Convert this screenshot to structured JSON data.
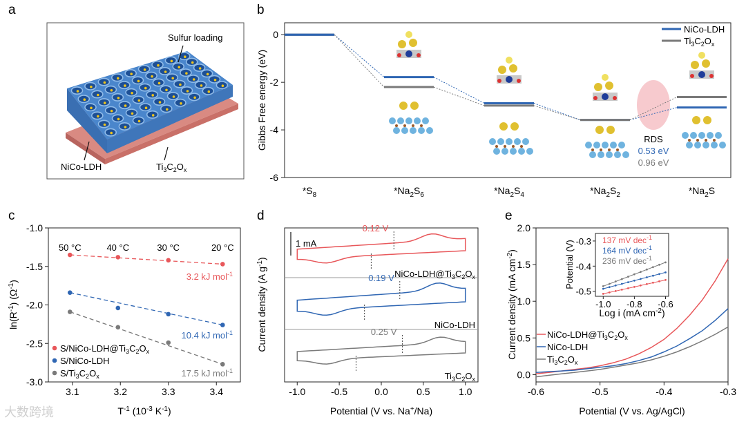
{
  "panels": {
    "a": "a",
    "b": "b",
    "c": "c",
    "d": "d",
    "e": "e"
  },
  "watermark": "大数跨境",
  "panel_a": {
    "labels": {
      "sulfur": "Sulfur loading",
      "ldh": "NiCo-LDH",
      "mxene_base": "Ti",
      "mxene_sub1": "3",
      "mxene_mid": "C",
      "mxene_sub2": "2",
      "mxene_o": "O",
      "mxene_x": "x"
    }
  },
  "colors": {
    "ldh": "#2f66b3",
    "mxene": "#7a7a7a",
    "composite": "#e8575a",
    "rds": "#f4b8bd"
  },
  "chart_data": [
    {
      "panel": "b",
      "type": "line",
      "ylabel": "Gibbs Free energy (eV)",
      "ylim": [
        -6,
        0.5
      ],
      "yticks": [
        0,
        -2,
        -4,
        -6
      ],
      "ytick_labels": [
        "0",
        "-2",
        "-4",
        "-6"
      ],
      "categories": [
        "*S8",
        "*Na2S6",
        "*Na2S4",
        "*Na2S2",
        "*Na2S"
      ],
      "category_parts": [
        {
          "base": "*S",
          "sub": "8",
          "rest": "",
          "sub2": ""
        },
        {
          "base": "*Na",
          "sub": "2",
          "rest": "S",
          "sub2": "6"
        },
        {
          "base": "*Na",
          "sub": "2",
          "rest": "S",
          "sub2": "4"
        },
        {
          "base": "*Na",
          "sub": "2",
          "rest": "S",
          "sub2": "2"
        },
        {
          "base": "*Na",
          "sub": "2",
          "rest": "S",
          "sub2": ""
        }
      ],
      "legend": [
        {
          "name": "NiCo-LDH",
          "base": "NiCo-LDH",
          "sub": ""
        },
        {
          "name": "Ti3C2Ox",
          "base": "Ti",
          "sub": "3",
          "mid": "C",
          "sub2": "2",
          "o": "O",
          "x": "x"
        }
      ],
      "series": [
        {
          "name": "NiCo-LDH",
          "values": [
            0,
            -1.78,
            -2.88,
            -3.58,
            -3.06
          ]
        },
        {
          "name": "Ti3C2Ox",
          "values": [
            0,
            -2.2,
            -2.98,
            -3.58,
            -2.62
          ]
        }
      ],
      "annotations": {
        "rds": "RDS",
        "ldh_rds": "0.53 eV",
        "mxene_rds": "0.96 eV"
      }
    },
    {
      "panel": "c",
      "type": "scatter",
      "xlabel_base": "T",
      "xlabel_sup": "-1",
      "xlabel_rest": " (10",
      "xlabel_sup2": "-3",
      "xlabel_rest2": " K",
      "xlabel_sup3": "-1",
      "xlabel_end": ")",
      "ylabel_base": "ln(R",
      "ylabel_sup": "-1",
      "ylabel_rest": ") (Ω",
      "ylabel_sup2": "-1",
      "ylabel_end": ")",
      "xlim": [
        3.05,
        3.45
      ],
      "ylim": [
        -3.0,
        -1.0
      ],
      "xticks": [
        3.1,
        3.2,
        3.3,
        3.4
      ],
      "xtick_labels": [
        "3.1",
        "3.2",
        "3.3",
        "3.4"
      ],
      "yticks": [
        -1.0,
        -1.5,
        -2.0,
        -2.5,
        -3.0
      ],
      "ytick_labels": [
        "-1.0",
        "-1.5",
        "-2.0",
        "-2.5",
        "-3.0"
      ],
      "x": [
        3.095,
        3.195,
        3.3,
        3.413
      ],
      "temperature_labels": [
        "50 °C",
        "40 °C",
        "30 °C",
        "20 °C"
      ],
      "series": [
        {
          "name": "S/NiCo-LDH@Ti3C2Ox",
          "values": [
            -1.35,
            -1.38,
            -1.42,
            -1.47
          ],
          "activation": "3.2 kJ mol",
          "act_sup": "-1"
        },
        {
          "name": "S/NiCo-LDH",
          "values": [
            -1.84,
            -2.04,
            -2.12,
            -2.26
          ],
          "activation": "10.4 kJ mol",
          "act_sup": "-1"
        },
        {
          "name": "S/Ti3C2Ox",
          "values": [
            -2.09,
            -2.29,
            -2.49,
            -2.77
          ],
          "activation": "17.5 kJ mol",
          "act_sup": "-1"
        }
      ],
      "legend": [
        {
          "base": "S/NiCo-LDH@Ti",
          "sub": "3",
          "mid": "C",
          "sub2": "2",
          "o": "O",
          "x": "x"
        },
        {
          "base": "S/NiCo-LDH",
          "sub": "",
          "mid": "",
          "sub2": "",
          "o": "",
          "x": ""
        },
        {
          "base": "S/Ti",
          "sub": "3",
          "mid": "C",
          "sub2": "2",
          "o": "O",
          "x": "x"
        }
      ]
    },
    {
      "panel": "d",
      "type": "line",
      "xlabel_base": "Potential (V vs. Na",
      "xlabel_sup": "+",
      "xlabel_end": "/Na)",
      "ylabel_base": "Current density (A g",
      "ylabel_sup": "-1",
      "ylabel_end": ")",
      "xlim": [
        -1.15,
        1.15
      ],
      "xticks": [
        -1.0,
        -0.5,
        0.0,
        0.5,
        1.0
      ],
      "xtick_labels": [
        "-1.0",
        "-0.5",
        "0.0",
        "0.5",
        "1.0"
      ],
      "scale_bar": "1 mA",
      "curves": [
        {
          "name": "NiCo-LDH@Ti3C2Ox",
          "label": {
            "base": "NiCo-LDH@Ti",
            "sub": "3",
            "mid": "C",
            "sub2": "2",
            "o": "O",
            "x": "x"
          },
          "gap": "0.12 V",
          "anodic_peak": 0.15,
          "cathodic_peak": -0.12
        },
        {
          "name": "NiCo-LDH",
          "label": {
            "base": "NiCo-LDH",
            "sub": "",
            "mid": "",
            "sub2": "",
            "o": "",
            "x": ""
          },
          "gap": "0.19 V",
          "anodic_peak": 0.22,
          "cathodic_peak": -0.2
        },
        {
          "name": "Ti3C2Ox",
          "label": {
            "base": "Ti",
            "sub": "3",
            "mid": "C",
            "sub2": "2",
            "o": "O",
            "x": "x"
          },
          "gap": "0.25 V",
          "anodic_peak": 0.25,
          "cathodic_peak": -0.3
        }
      ]
    },
    {
      "panel": "e",
      "type": "line",
      "xlabel": "Potential (V vs. Ag/AgCl)",
      "ylabel_base": "Current density (mA cm",
      "ylabel_sup": "-2",
      "ylabel_end": ")",
      "xlim": [
        -0.6,
        -0.3
      ],
      "ylim": [
        -0.1,
        2.0
      ],
      "xticks": [
        -0.6,
        -0.5,
        -0.4,
        -0.3
      ],
      "xtick_labels": [
        "-0.6",
        "-0.5",
        "-0.4",
        "-0.3"
      ],
      "yticks": [
        0.0,
        0.5,
        1.0,
        1.5,
        2.0
      ],
      "ytick_labels": [
        "0.0",
        "0.5",
        "1.0",
        "1.5",
        "2.0"
      ],
      "x": [
        -0.6,
        -0.58,
        -0.56,
        -0.54,
        -0.52,
        -0.5,
        -0.48,
        -0.46,
        -0.44,
        -0.42,
        -0.4,
        -0.38,
        -0.36,
        -0.34,
        -0.32,
        -0.3
      ],
      "series": [
        {
          "name": "NiCo-LDH@Ti3C2Ox",
          "values": [
            0.01,
            0.03,
            0.05,
            0.07,
            0.09,
            0.12,
            0.16,
            0.21,
            0.28,
            0.37,
            0.48,
            0.63,
            0.81,
            1.02,
            1.28,
            1.58
          ]
        },
        {
          "name": "NiCo-LDH",
          "values": [
            0.03,
            0.04,
            0.05,
            0.06,
            0.08,
            0.1,
            0.12,
            0.15,
            0.19,
            0.24,
            0.31,
            0.39,
            0.49,
            0.6,
            0.74,
            0.9
          ]
        },
        {
          "name": "Ti3C2Ox",
          "values": [
            -0.03,
            -0.01,
            0.01,
            0.03,
            0.05,
            0.07,
            0.1,
            0.13,
            0.16,
            0.2,
            0.25,
            0.31,
            0.38,
            0.46,
            0.55,
            0.65
          ]
        }
      ],
      "legend": [
        {
          "base": "NiCo-LDH@Ti",
          "sub": "3",
          "mid": "C",
          "sub2": "2",
          "o": "O",
          "x": "x"
        },
        {
          "base": "NiCo-LDH",
          "sub": "",
          "mid": "",
          "sub2": "",
          "o": "",
          "x": ""
        },
        {
          "base": "Ti",
          "sub": "3",
          "mid": "C",
          "sub2": "2",
          "o": "O",
          "x": "x"
        }
      ],
      "inset": {
        "type": "line",
        "xlabel_base": "Log i (mA cm",
        "xlabel_sup": "-2",
        "xlabel_end": ")",
        "ylabel": "Potential (V)",
        "xlim": [
          -1.05,
          -0.58
        ],
        "ylim": [
          -0.52,
          -0.27
        ],
        "xticks": [
          -1.0,
          -0.8,
          -0.6
        ],
        "xtick_labels": [
          "-1.0",
          "-0.8",
          "-0.6"
        ],
        "yticks": [
          -0.3,
          -0.4,
          -0.5
        ],
        "ytick_labels": [
          "-0.3",
          "-0.4",
          "-0.5"
        ],
        "x": [
          -1.0,
          -0.6
        ],
        "series": [
          {
            "name": "137 mV dec",
            "sup": "-1",
            "values": [
              -0.51,
              -0.455
            ]
          },
          {
            "name": "164 mV dec",
            "sup": "-1",
            "values": [
              -0.49,
              -0.425
            ]
          },
          {
            "name": "236 mV dec",
            "sup": "-1",
            "values": [
              -0.48,
              -0.385
            ]
          }
        ]
      }
    }
  ]
}
